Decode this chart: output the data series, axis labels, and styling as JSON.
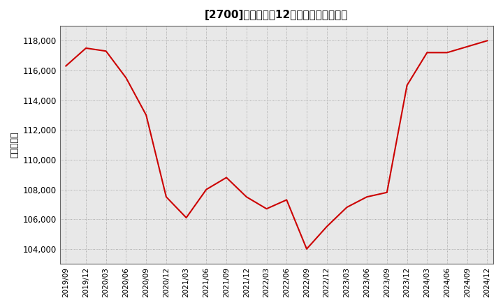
{
  "title": "[2700]　売上高の12か月移動合計の推移",
  "ylabel": "（百万円）",
  "line_color": "#cc0000",
  "background_color": "#ffffff",
  "plot_bg_color": "#e8e8e8",
  "grid_color": "#999999",
  "dates": [
    "2019/09",
    "2019/12",
    "2020/03",
    "2020/06",
    "2020/09",
    "2020/12",
    "2021/03",
    "2021/06",
    "2021/09",
    "2021/12",
    "2022/03",
    "2022/06",
    "2022/09",
    "2022/12",
    "2023/03",
    "2023/06",
    "2023/09",
    "2023/12",
    "2024/03",
    "2024/06",
    "2024/09",
    "2024/12"
  ],
  "values": [
    116300,
    117500,
    117300,
    115500,
    113000,
    107500,
    106100,
    108000,
    108800,
    107500,
    106700,
    107300,
    104000,
    105500,
    106800,
    107500,
    107800,
    115000,
    117200,
    117200,
    117600,
    118000
  ],
  "ylim": [
    103000,
    119000
  ],
  "yticks": [
    104000,
    106000,
    108000,
    110000,
    112000,
    114000,
    116000,
    118000
  ]
}
